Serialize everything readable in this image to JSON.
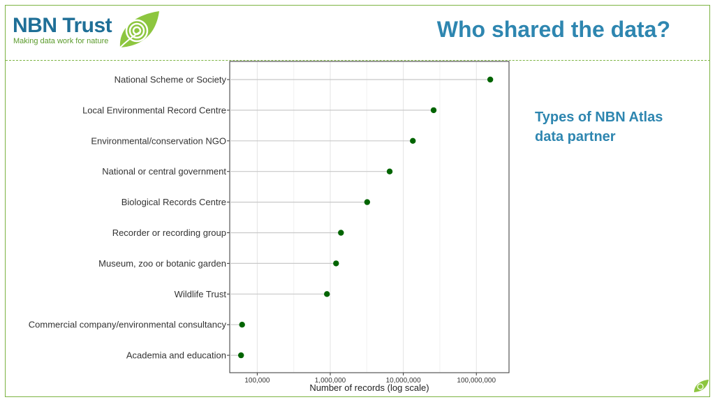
{
  "logo": {
    "brand": "NBN Trust",
    "tagline": "Making data work for nature"
  },
  "page_title": "Who shared the data?",
  "side_note": "Types of NBN Atlas data partner",
  "colors": {
    "title": "#2e86b0",
    "brand_blue": "#1f6f97",
    "accent_green": "#7cb342",
    "point": "#006400"
  },
  "chart_data": {
    "type": "scatter",
    "style": "lollipop",
    "categories": [
      "National Scheme or Society",
      "Local Environmental Record Centre",
      "Environmental/conservation NGO",
      "National or central government",
      "Biological Records Centre",
      "Recorder or recording group",
      "Museum, zoo or botanic garden",
      "Wildlife Trust",
      "Commercial company/environmental consultancy",
      "Academia and education"
    ],
    "values": [
      155000000,
      26000000,
      13500000,
      6500000,
      3200000,
      1400000,
      1200000,
      900000,
      62000,
      60000
    ],
    "xlabel": "Number of records (log scale)",
    "x_scale": "log",
    "xlim": [
      42000,
      280000000
    ],
    "x_ticks": [
      100000,
      1000000,
      10000000,
      100000000
    ],
    "x_tick_labels": [
      "100,000",
      "1,000,000",
      "10,000,000",
      "100,000,000"
    ],
    "grid": true
  }
}
